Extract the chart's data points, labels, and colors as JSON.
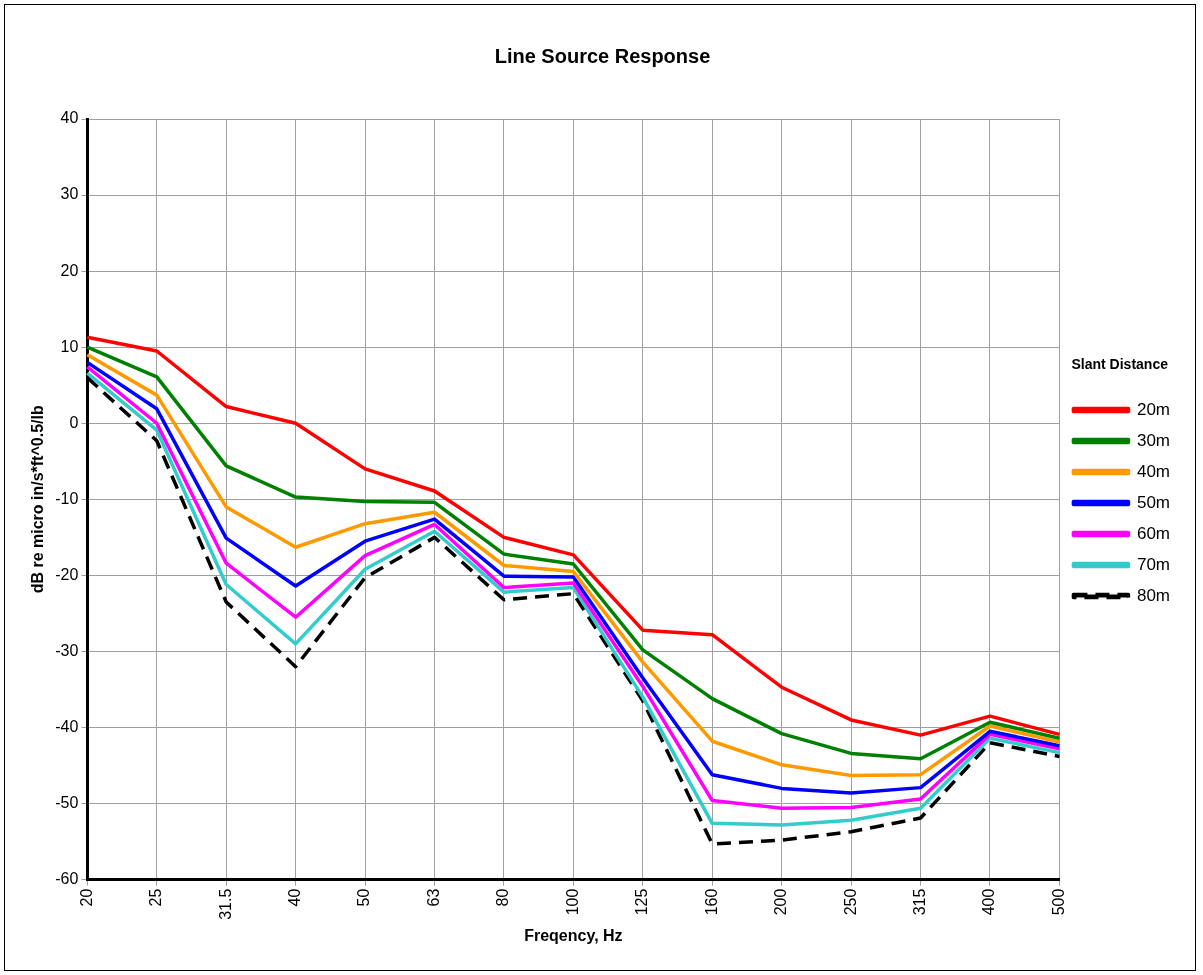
{
  "chart_data": {
    "type": "line",
    "title": "Line Source Response",
    "xlabel": "Freqency, Hz",
    "ylabel": "dB re micro in/s*ft^0.5/lb",
    "legend_title": "Slant Distance",
    "legend": "right",
    "grid": true,
    "marker": "none",
    "categories": [
      "20",
      "25",
      "31.5",
      "40",
      "50",
      "63",
      "80",
      "100",
      "125",
      "160",
      "200",
      "250",
      "315",
      "400",
      "500"
    ],
    "ylim": [
      -60,
      40
    ],
    "yticks": [
      -60,
      -50,
      -40,
      -30,
      -20,
      -10,
      0,
      10,
      20,
      30,
      40
    ],
    "series": [
      {
        "name": "20m",
        "color": "#ff0000",
        "values": [
          11.3,
          9.5,
          2.2,
          0,
          -6,
          -8.9,
          -15,
          -17.3,
          -27.2,
          -27.8,
          -34.7,
          -39,
          -41,
          -38.5,
          -40.9
        ]
      },
      {
        "name": "30m",
        "color": "#008000",
        "values": [
          10,
          6.1,
          -5.6,
          -9.7,
          -10.3,
          -10.4,
          -17.2,
          -18.5,
          -29.8,
          -36.2,
          -40.8,
          -43.4,
          -44.1,
          -39.3,
          -41.4
        ]
      },
      {
        "name": "40m",
        "color": "#ff9900",
        "values": [
          9,
          3.7,
          -11,
          -16.3,
          -13.2,
          -11.7,
          -18.7,
          -19.5,
          -31.4,
          -41.8,
          -44.9,
          -46.3,
          -46.2,
          -39.8,
          -41.9
        ]
      },
      {
        "name": "50m",
        "color": "#0000ff",
        "values": [
          8,
          1.9,
          -15.1,
          -21.4,
          -15.5,
          -12.6,
          -20.1,
          -20.2,
          -33.5,
          -46.2,
          -48,
          -48.6,
          -47.9,
          -40.5,
          -42.4
        ]
      },
      {
        "name": "60m",
        "color": "#ff00ff",
        "values": [
          7.4,
          0,
          -18.4,
          -25.5,
          -17.4,
          -13.3,
          -21.6,
          -21,
          -34.6,
          -49.6,
          -50.6,
          -50.5,
          -49.4,
          -40.9,
          -42.8
        ]
      },
      {
        "name": "70m",
        "color": "#33cccc",
        "values": [
          6.6,
          -0.9,
          -21.2,
          -29,
          -19.2,
          -14.2,
          -22.2,
          -21.6,
          -36,
          -52.6,
          -52.8,
          -52.2,
          -50.6,
          -41.4,
          -43.3
        ]
      },
      {
        "name": "80m",
        "color": "#000000",
        "line_style": "dashed",
        "values": [
          6,
          -2.3,
          -23.5,
          -32,
          -20.3,
          -15,
          -23.2,
          -22.4,
          -36.5,
          -55.3,
          -54.8,
          -53.7,
          -51.9,
          -42,
          -43.8
        ]
      }
    ]
  }
}
